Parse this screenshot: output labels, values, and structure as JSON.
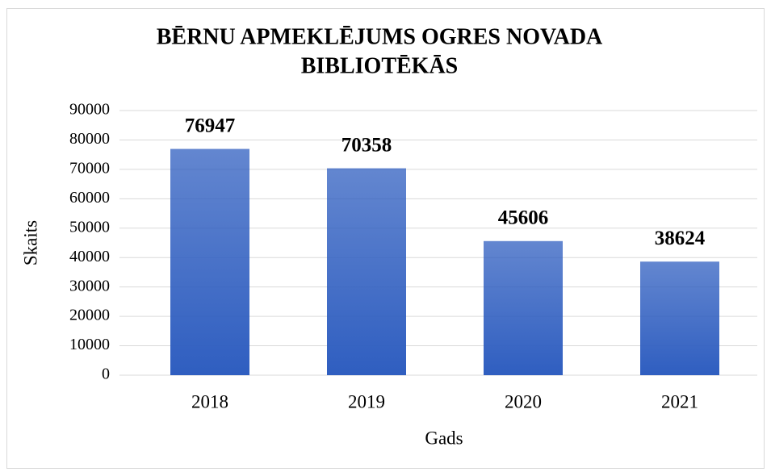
{
  "chart_data": {
    "type": "bar",
    "title": [
      "BĒRNU APMEKLĒJUMS OGRES NOVADA",
      "BIBLIOTĒKĀS"
    ],
    "x_label": "Gads",
    "y_label": "Skaits",
    "categories": [
      "2018",
      "2019",
      "2020",
      "2021"
    ],
    "values": [
      76947,
      70358,
      45606,
      38624
    ],
    "color": "#2f5ec0",
    "ylim": [
      0,
      90000
    ],
    "yticks": [
      0,
      10000,
      20000,
      30000,
      40000,
      50000,
      60000,
      70000,
      80000,
      90000
    ],
    "grid": true
  }
}
